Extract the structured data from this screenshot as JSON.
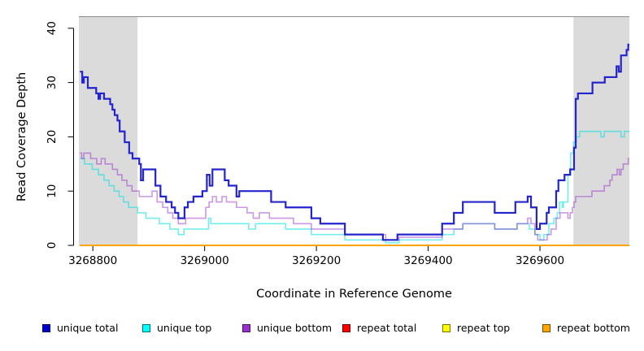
{
  "chart_data": {
    "type": "line",
    "subtype": "step-coverage-plot",
    "title": "",
    "xlabel": "Coordinate in Reference Genome",
    "ylabel": "Read Coverage Depth",
    "xlim": [
      3268775,
      3269760
    ],
    "ylim": [
      0,
      40
    ],
    "x_ticks": [
      3268800,
      3269000,
      3269200,
      3269400,
      3269600
    ],
    "y_ticks": [
      0,
      10,
      20,
      30,
      40
    ],
    "grid": false,
    "legend_position": "bottom",
    "highlight_color": "#DBDBDB",
    "highlight_regions": [
      {
        "x0": 3268775,
        "x1": 3268880
      },
      {
        "x0": 3269660,
        "x1": 3269760
      }
    ],
    "series": [
      {
        "name": "unique top",
        "color": "#00E0E0",
        "alpha": 0.55,
        "width": 1.6,
        "points": [
          [
            3268777,
            16
          ],
          [
            3268785,
            15
          ],
          [
            3268799,
            14
          ],
          [
            3268810,
            13
          ],
          [
            3268820,
            12
          ],
          [
            3268829,
            11
          ],
          [
            3268838,
            10
          ],
          [
            3268847,
            9
          ],
          [
            3268855,
            8
          ],
          [
            3268864,
            7
          ],
          [
            3268880,
            6
          ],
          [
            3268895,
            5
          ],
          [
            3268919,
            4
          ],
          [
            3268938,
            3
          ],
          [
            3268953,
            2
          ],
          [
            3268963,
            3
          ],
          [
            3269007,
            5
          ],
          [
            3269011,
            4
          ],
          [
            3269079,
            3
          ],
          [
            3269091,
            4
          ],
          [
            3269145,
            3
          ],
          [
            3269191,
            2
          ],
          [
            3269251,
            1
          ],
          [
            3269324,
            0.5
          ],
          [
            3269348,
            1
          ],
          [
            3269425,
            2
          ],
          [
            3269446,
            3
          ],
          [
            3269462,
            4
          ],
          [
            3269519,
            3
          ],
          [
            3269559,
            4
          ],
          [
            3269581,
            3
          ],
          [
            3269591,
            2
          ],
          [
            3269600,
            1
          ],
          [
            3269607,
            2
          ],
          [
            3269616,
            4
          ],
          [
            3269625,
            5
          ],
          [
            3269631,
            6
          ],
          [
            3269635,
            8
          ],
          [
            3269640,
            7
          ],
          [
            3269642,
            8
          ],
          [
            3269650,
            13
          ],
          [
            3269655,
            17
          ],
          [
            3269660,
            19
          ],
          [
            3269665,
            20
          ],
          [
            3269671,
            21
          ],
          [
            3269709,
            20
          ],
          [
            3269715,
            21
          ],
          [
            3269745,
            20
          ],
          [
            3269751,
            21
          ]
        ]
      },
      {
        "name": "unique bottom",
        "color": "#9932CC",
        "alpha": 0.5,
        "width": 1.6,
        "points": [
          [
            3268777,
            17
          ],
          [
            3268780,
            16
          ],
          [
            3268784,
            17
          ],
          [
            3268796,
            16
          ],
          [
            3268807,
            15
          ],
          [
            3268815,
            16
          ],
          [
            3268822,
            15
          ],
          [
            3268835,
            14
          ],
          [
            3268844,
            13
          ],
          [
            3268852,
            12
          ],
          [
            3268861,
            11
          ],
          [
            3268870,
            10
          ],
          [
            3268883,
            9
          ],
          [
            3268906,
            10
          ],
          [
            3268915,
            8
          ],
          [
            3268925,
            7
          ],
          [
            3268934,
            6
          ],
          [
            3268943,
            5
          ],
          [
            3268953,
            4
          ],
          [
            3268966,
            5
          ],
          [
            3269002,
            7
          ],
          [
            3269008,
            8
          ],
          [
            3269014,
            9
          ],
          [
            3269021,
            8
          ],
          [
            3269031,
            9
          ],
          [
            3269039,
            8
          ],
          [
            3269057,
            7
          ],
          [
            3269076,
            6
          ],
          [
            3269087,
            5
          ],
          [
            3269098,
            6
          ],
          [
            3269116,
            5
          ],
          [
            3269159,
            4
          ],
          [
            3269191,
            3
          ],
          [
            3269251,
            2
          ],
          [
            3269324,
            1
          ],
          [
            3269348,
            1.5
          ],
          [
            3269425,
            3
          ],
          [
            3269462,
            4
          ],
          [
            3269519,
            3
          ],
          [
            3269559,
            4
          ],
          [
            3269578,
            5
          ],
          [
            3269584,
            4
          ],
          [
            3269591,
            2
          ],
          [
            3269596,
            1
          ],
          [
            3269613,
            2
          ],
          [
            3269620,
            3
          ],
          [
            3269629,
            5
          ],
          [
            3269636,
            6
          ],
          [
            3269650,
            5
          ],
          [
            3269654,
            6
          ],
          [
            3269658,
            7
          ],
          [
            3269661,
            8
          ],
          [
            3269664,
            9
          ],
          [
            3269693,
            10
          ],
          [
            3269715,
            11
          ],
          [
            3269725,
            12
          ],
          [
            3269729,
            13
          ],
          [
            3269738,
            14
          ],
          [
            3269742,
            13
          ],
          [
            3269745,
            14
          ],
          [
            3269749,
            15
          ],
          [
            3269758,
            16
          ]
        ]
      },
      {
        "name": "unique total",
        "color": "#2424CE",
        "alpha": 1,
        "width": 2.2,
        "points": [
          [
            3268777,
            32
          ],
          [
            3268781,
            30
          ],
          [
            3268784,
            31
          ],
          [
            3268791,
            29
          ],
          [
            3268806,
            28
          ],
          [
            3268810,
            27
          ],
          [
            3268813,
            28
          ],
          [
            3268820,
            27
          ],
          [
            3268831,
            26
          ],
          [
            3268835,
            25
          ],
          [
            3268839,
            24
          ],
          [
            3268844,
            23
          ],
          [
            3268848,
            21
          ],
          [
            3268857,
            19
          ],
          [
            3268865,
            17
          ],
          [
            3268871,
            16
          ],
          [
            3268883,
            15
          ],
          [
            3268886,
            12
          ],
          [
            3268890,
            14
          ],
          [
            3268912,
            11
          ],
          [
            3268921,
            9
          ],
          [
            3268931,
            8
          ],
          [
            3268941,
            7
          ],
          [
            3268947,
            6
          ],
          [
            3268953,
            5
          ],
          [
            3268964,
            7
          ],
          [
            3268970,
            8
          ],
          [
            3268980,
            9
          ],
          [
            3268996,
            10
          ],
          [
            3269004,
            13
          ],
          [
            3269009,
            11
          ],
          [
            3269014,
            14
          ],
          [
            3269036,
            12
          ],
          [
            3269043,
            11
          ],
          [
            3269057,
            9
          ],
          [
            3269062,
            10
          ],
          [
            3269119,
            8
          ],
          [
            3269145,
            7
          ],
          [
            3269191,
            5
          ],
          [
            3269207,
            4
          ],
          [
            3269251,
            2
          ],
          [
            3269319,
            1
          ],
          [
            3269345,
            2
          ],
          [
            3269425,
            4
          ],
          [
            3269446,
            6
          ],
          [
            3269462,
            8
          ],
          [
            3269519,
            6
          ],
          [
            3269556,
            8
          ],
          [
            3269578,
            9
          ],
          [
            3269584,
            7
          ],
          [
            3269594,
            3
          ],
          [
            3269600,
            4
          ],
          [
            3269612,
            6
          ],
          [
            3269616,
            7
          ],
          [
            3269629,
            10
          ],
          [
            3269633,
            12
          ],
          [
            3269644,
            13
          ],
          [
            3269654,
            14
          ],
          [
            3269661,
            18
          ],
          [
            3269664,
            27
          ],
          [
            3269668,
            28
          ],
          [
            3269694,
            30
          ],
          [
            3269716,
            31
          ],
          [
            3269737,
            33
          ],
          [
            3269741,
            32
          ],
          [
            3269745,
            35
          ],
          [
            3269755,
            36
          ],
          [
            3269758,
            37
          ]
        ]
      },
      {
        "name": "repeat total",
        "color": "#EE0000",
        "alpha": 1,
        "width": 1.6,
        "points": [
          [
            3268777,
            0
          ]
        ]
      },
      {
        "name": "repeat top",
        "color": "#FFFF00",
        "alpha": 1,
        "width": 1.6,
        "points": [
          [
            3268777,
            0
          ]
        ]
      },
      {
        "name": "repeat bottom",
        "color": "#FFA500",
        "alpha": 1,
        "width": 2,
        "points": [
          [
            3268777,
            0
          ]
        ]
      }
    ],
    "legend": [
      {
        "label": "unique total",
        "color": "#0000CD"
      },
      {
        "label": "unique top",
        "color": "#00FFFF"
      },
      {
        "label": "unique bottom",
        "color": "#9932CC"
      },
      {
        "label": "repeat total",
        "color": "#FF0000"
      },
      {
        "label": "repeat top",
        "color": "#FFFF00"
      },
      {
        "label": "repeat bottom",
        "color": "#FFA500"
      }
    ]
  }
}
